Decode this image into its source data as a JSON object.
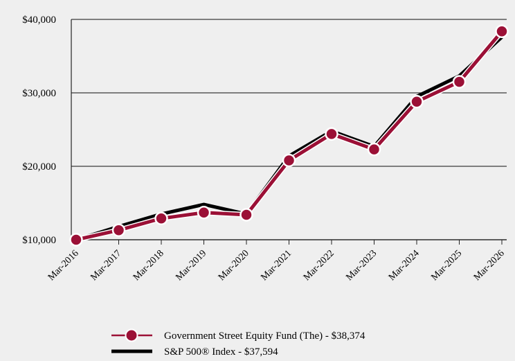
{
  "chart_data": {
    "type": "line",
    "categories": [
      "Mar-2016",
      "Mar-2017",
      "Mar-2018",
      "Mar-2019",
      "Mar-2020",
      "Mar-2021",
      "Mar-2022",
      "Mar-2023",
      "Mar-2024",
      "Mar-2025",
      "Mar-2026"
    ],
    "series": [
      {
        "name": "Government Street Equity Fund (The) - $38,374",
        "color": "#9b1036",
        "marker": "circle",
        "values": [
          10000,
          11300,
          12900,
          13700,
          13400,
          20800,
          24400,
          22300,
          28800,
          31500,
          38374
        ]
      },
      {
        "name": "S&P 500® Index - $37,594",
        "color": "#000000",
        "marker": "none",
        "values": [
          10000,
          11800,
          13500,
          14800,
          13500,
          21400,
          24800,
          22700,
          29500,
          32300,
          37594
        ]
      }
    ],
    "y_ticks": [
      "$10,000",
      "$20,000",
      "$30,000",
      "$40,000"
    ],
    "y_tick_values": [
      10000,
      20000,
      30000,
      40000
    ],
    "ylim": [
      10000,
      40000
    ],
    "grid": "horizontal",
    "legend_position": "bottom"
  }
}
